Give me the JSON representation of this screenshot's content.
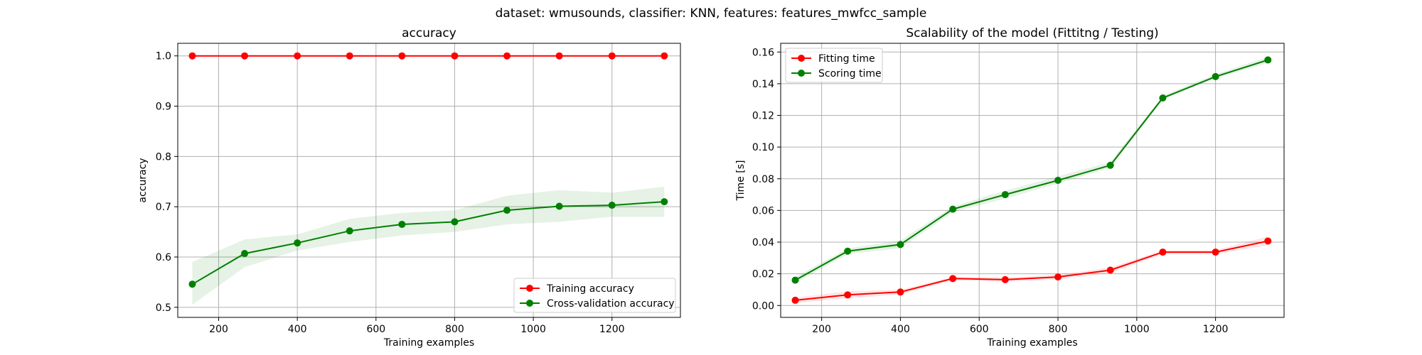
{
  "figure": {
    "suptitle": "dataset: wmusounds, classifier: KNN, features: features_mwfcc_sample"
  },
  "chart_data": [
    {
      "type": "line",
      "title": "accuracy",
      "xlabel": "Training examples",
      "ylabel": "accuracy",
      "xlim": [
        96,
        1374
      ],
      "ylim": [
        0.48,
        1.025
      ],
      "xticks": [
        200,
        400,
        600,
        800,
        1000,
        1200
      ],
      "yticks": [
        0.5,
        0.6,
        0.7,
        0.8,
        0.9,
        1.0
      ],
      "ytick_labels": [
        "0.5",
        "0.6",
        "0.7",
        "0.8",
        "0.9",
        "1.0"
      ],
      "grid": true,
      "legend_loc": "lower-right",
      "x": [
        133,
        266,
        400,
        533,
        666,
        800,
        933,
        1066,
        1200,
        1333
      ],
      "series": [
        {
          "name": "Training accuracy",
          "color": "#ff0000",
          "band_color": "#ff0000",
          "values": [
            1.0,
            1.0,
            1.0,
            1.0,
            1.0,
            1.0,
            1.0,
            1.0,
            1.0,
            1.0
          ],
          "lower": [
            1.0,
            1.0,
            1.0,
            1.0,
            1.0,
            1.0,
            1.0,
            1.0,
            1.0,
            1.0
          ],
          "upper": [
            1.0,
            1.0,
            1.0,
            1.0,
            1.0,
            1.0,
            1.0,
            1.0,
            1.0,
            1.0
          ]
        },
        {
          "name": "Cross-validation accuracy",
          "color": "#008000",
          "band_color": "#008000",
          "values": [
            0.546,
            0.607,
            0.628,
            0.652,
            0.665,
            0.67,
            0.693,
            0.701,
            0.703,
            0.71
          ],
          "lower": [
            0.505,
            0.58,
            0.613,
            0.63,
            0.643,
            0.65,
            0.665,
            0.67,
            0.68,
            0.68
          ],
          "upper": [
            0.59,
            0.635,
            0.645,
            0.676,
            0.688,
            0.693,
            0.722,
            0.733,
            0.728,
            0.74
          ]
        }
      ]
    },
    {
      "type": "line",
      "title": "Scalability of the model (Fittitng / Testing)",
      "xlabel": "Training examples",
      "ylabel": "Time [s]",
      "xlim": [
        96,
        1374
      ],
      "ylim": [
        -0.0075,
        0.1655
      ],
      "xticks": [
        200,
        400,
        600,
        800,
        1000,
        1200
      ],
      "yticks": [
        0.0,
        0.02,
        0.04,
        0.06,
        0.08,
        0.1,
        0.12,
        0.14,
        0.16
      ],
      "ytick_labels": [
        "0.00",
        "0.02",
        "0.04",
        "0.06",
        "0.08",
        "0.10",
        "0.12",
        "0.14",
        "0.16"
      ],
      "grid": true,
      "legend_loc": "top-left",
      "x": [
        133,
        266,
        400,
        533,
        666,
        800,
        933,
        1066,
        1200,
        1333
      ],
      "series": [
        {
          "name": "Fitting time",
          "color": "#ff0000",
          "band_color": "#ff0000",
          "values": [
            0.0033,
            0.0067,
            0.0085,
            0.017,
            0.0163,
            0.018,
            0.0223,
            0.0337,
            0.0337,
            0.0407
          ],
          "lower": [
            0.0015,
            0.0045,
            0.007,
            0.016,
            0.015,
            0.0165,
            0.0205,
            0.0325,
            0.0325,
            0.038
          ],
          "upper": [
            0.005,
            0.009,
            0.01,
            0.018,
            0.0176,
            0.0195,
            0.024,
            0.035,
            0.035,
            0.0435
          ]
        },
        {
          "name": "Scoring time",
          "color": "#008000",
          "band_color": "#008000",
          "values": [
            0.016,
            0.0343,
            0.0385,
            0.0608,
            0.07,
            0.079,
            0.0885,
            0.131,
            0.1445,
            0.155
          ],
          "lower": [
            0.014,
            0.0325,
            0.036,
            0.059,
            0.0675,
            0.077,
            0.087,
            0.13,
            0.1435,
            0.153
          ],
          "upper": [
            0.018,
            0.036,
            0.041,
            0.0625,
            0.0725,
            0.0815,
            0.0905,
            0.1325,
            0.146,
            0.157
          ]
        }
      ]
    }
  ]
}
